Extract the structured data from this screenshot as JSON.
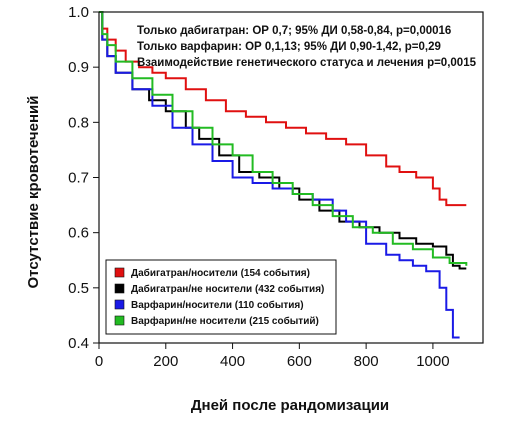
{
  "chart_data": {
    "type": "line",
    "subtype": "step (Kaplan-Meier)",
    "title": "",
    "xlabel": "Дней после рандомизации",
    "ylabel": "Отсутствие кровотечений",
    "xlim": [
      0,
      1150
    ],
    "ylim": [
      0.4,
      1.0
    ],
    "x_ticks": [
      0,
      200,
      400,
      600,
      800,
      1000
    ],
    "y_ticks": [
      0.4,
      0.5,
      0.6,
      0.7,
      0.8,
      0.9,
      1.0
    ],
    "x_tick_labels": [
      "0",
      "200",
      "400",
      "600",
      "800",
      "1000"
    ],
    "y_tick_labels": [
      "0.4",
      "0.5",
      "0.6",
      "0.7",
      "0.8",
      "0.9",
      "1.0"
    ],
    "grid": false,
    "legend_position": "bottom-left",
    "annotations": [
      "Только дабигатран: ОР 0,7; 95% ДИ 0,58-0,84, p=0,00016",
      "Только варфарин: ОР 0,1,13; 95% ДИ 0,90-1,42, p=0,29",
      "Взаимодействие генетического статуса и лечения p=0,0015"
    ],
    "series": [
      {
        "name": "Дабигатран/носители (154 события)",
        "color": "#e01010",
        "points": [
          [
            0,
            1.0
          ],
          [
            10,
            0.97
          ],
          [
            25,
            0.95
          ],
          [
            50,
            0.93
          ],
          [
            80,
            0.91
          ],
          [
            120,
            0.9
          ],
          [
            160,
            0.89
          ],
          [
            200,
            0.88
          ],
          [
            260,
            0.86
          ],
          [
            320,
            0.84
          ],
          [
            380,
            0.82
          ],
          [
            440,
            0.81
          ],
          [
            500,
            0.8
          ],
          [
            560,
            0.79
          ],
          [
            620,
            0.78
          ],
          [
            680,
            0.77
          ],
          [
            740,
            0.76
          ],
          [
            800,
            0.74
          ],
          [
            860,
            0.72
          ],
          [
            900,
            0.71
          ],
          [
            950,
            0.7
          ],
          [
            1000,
            0.68
          ],
          [
            1020,
            0.66
          ],
          [
            1040,
            0.65
          ],
          [
            1100,
            0.65
          ]
        ]
      },
      {
        "name": "Дабигатран/не носители (432 события)",
        "color": "#000000",
        "points": [
          [
            0,
            1.0
          ],
          [
            10,
            0.95
          ],
          [
            25,
            0.92
          ],
          [
            50,
            0.89
          ],
          [
            100,
            0.86
          ],
          [
            150,
            0.84
          ],
          [
            200,
            0.82
          ],
          [
            260,
            0.79
          ],
          [
            300,
            0.77
          ],
          [
            360,
            0.74
          ],
          [
            420,
            0.71
          ],
          [
            480,
            0.7
          ],
          [
            540,
            0.68
          ],
          [
            600,
            0.66
          ],
          [
            660,
            0.64
          ],
          [
            720,
            0.62
          ],
          [
            780,
            0.61
          ],
          [
            840,
            0.6
          ],
          [
            900,
            0.59
          ],
          [
            950,
            0.58
          ],
          [
            1000,
            0.575
          ],
          [
            1040,
            0.56
          ],
          [
            1060,
            0.54
          ],
          [
            1080,
            0.535
          ],
          [
            1100,
            0.535
          ]
        ]
      },
      {
        "name": "Варфарин/носители (110 события)",
        "color": "#1a1ae6",
        "points": [
          [
            0,
            1.0
          ],
          [
            10,
            0.95
          ],
          [
            25,
            0.92
          ],
          [
            50,
            0.89
          ],
          [
            100,
            0.86
          ],
          [
            160,
            0.83
          ],
          [
            220,
            0.79
          ],
          [
            280,
            0.76
          ],
          [
            340,
            0.73
          ],
          [
            400,
            0.7
          ],
          [
            460,
            0.69
          ],
          [
            520,
            0.68
          ],
          [
            580,
            0.67
          ],
          [
            640,
            0.66
          ],
          [
            700,
            0.64
          ],
          [
            740,
            0.62
          ],
          [
            800,
            0.58
          ],
          [
            860,
            0.56
          ],
          [
            900,
            0.55
          ],
          [
            940,
            0.54
          ],
          [
            980,
            0.53
          ],
          [
            1020,
            0.5
          ],
          [
            1040,
            0.46
          ],
          [
            1060,
            0.41
          ],
          [
            1080,
            0.41
          ]
        ]
      },
      {
        "name": "Варфарин/не носители (215 событий)",
        "color": "#22bb22",
        "points": [
          [
            0,
            1.0
          ],
          [
            10,
            0.96
          ],
          [
            25,
            0.94
          ],
          [
            50,
            0.91
          ],
          [
            100,
            0.88
          ],
          [
            160,
            0.85
          ],
          [
            220,
            0.82
          ],
          [
            280,
            0.79
          ],
          [
            340,
            0.76
          ],
          [
            400,
            0.74
          ],
          [
            460,
            0.71
          ],
          [
            520,
            0.69
          ],
          [
            580,
            0.67
          ],
          [
            640,
            0.65
          ],
          [
            700,
            0.63
          ],
          [
            760,
            0.61
          ],
          [
            820,
            0.6
          ],
          [
            880,
            0.58
          ],
          [
            940,
            0.57
          ],
          [
            1000,
            0.555
          ],
          [
            1050,
            0.545
          ],
          [
            1100,
            0.54
          ]
        ]
      }
    ]
  }
}
